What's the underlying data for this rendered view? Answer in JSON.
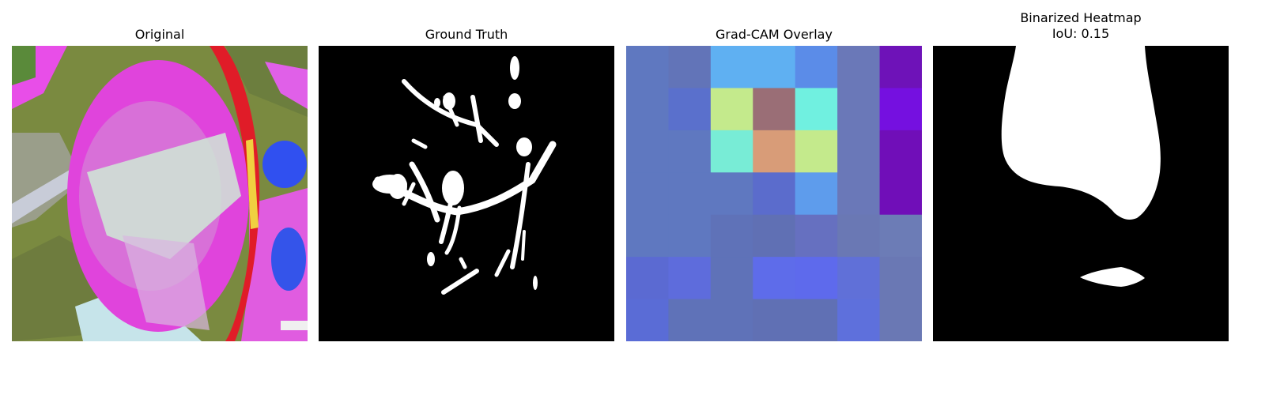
{
  "panels": [
    {
      "title": "Original"
    },
    {
      "title": "Ground Truth"
    },
    {
      "title": "Grad-CAM Overlay"
    },
    {
      "title": "Binarized Heatmap",
      "subtitle": "IoU: 0.15"
    }
  ],
  "gradcam_grid": [
    [
      "#5f78c0",
      "#6274b8",
      "#5fb0f2",
      "#5fb0f2",
      "#5b8ce8",
      "#6a78b8",
      "#6e12b8"
    ],
    [
      "#5f78c0",
      "#5a70cc",
      "#c4ea8c",
      "#9a6e76",
      "#70f0e0",
      "#6a78b8",
      "#7510e0"
    ],
    [
      "#5f78c0",
      "#5f78c0",
      "#78ecd6",
      "#d89c78",
      "#c4ea8c",
      "#6a78b8",
      "#700eb8"
    ],
    [
      "#5f78c0",
      "#5f78c0",
      "#5f78c0",
      "#5b6ccc",
      "#5e9cec",
      "#6a78b8",
      "#700eb8"
    ],
    [
      "#5f78c0",
      "#5f78c0",
      "#5f72b8",
      "#6070b4",
      "#6670c0",
      "#6a78b4",
      "#6c7cb6"
    ],
    [
      "#5b6ad2",
      "#5e6cdc",
      "#5f72b8",
      "#5e6cea",
      "#5e6aec",
      "#6070d8",
      "#6a78b4"
    ],
    [
      "#5a6cd6",
      "#5f72b8",
      "#5f72b8",
      "#6070b4",
      "#6070b4",
      "#5e70dc",
      "#6a78b4"
    ]
  ],
  "colors": {
    "mask_bg": "#000000",
    "mask_fg": "#ffffff",
    "original_magenta": "#e844e0",
    "original_green": "#6f7e3a",
    "original_blue": "#2e4bf2",
    "original_red": "#e01c28",
    "original_pale": "#cfe9d6"
  }
}
